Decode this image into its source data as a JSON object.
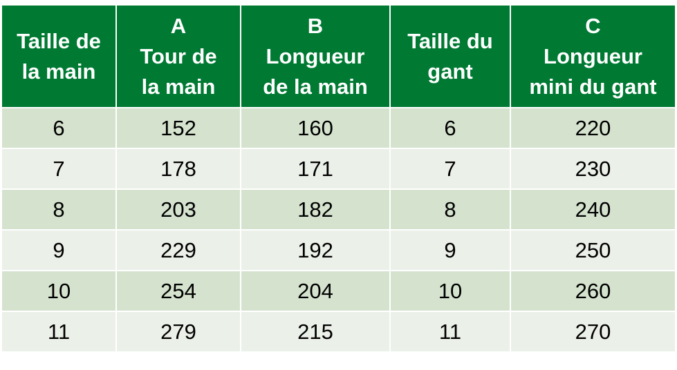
{
  "colors": {
    "header_bg": "#007a33",
    "header_text": "#ffffff",
    "row_odd": "#d5e3ce",
    "row_even": "#ebf0e8"
  },
  "chart_data": {
    "type": "table",
    "columns": [
      {
        "lines": [
          "Taille de",
          "la main"
        ]
      },
      {
        "lines": [
          "A",
          "Tour de",
          "la main"
        ]
      },
      {
        "lines": [
          "B",
          "Longueur",
          "de la main"
        ]
      },
      {
        "lines": [
          "Taille du",
          "gant"
        ]
      },
      {
        "lines": [
          "C",
          "Longueur",
          "mini du gant"
        ]
      }
    ],
    "rows": [
      [
        "6",
        "152",
        "160",
        "6",
        "220"
      ],
      [
        "7",
        "178",
        "171",
        "7",
        "230"
      ],
      [
        "8",
        "203",
        "182",
        "8",
        "240"
      ],
      [
        "9",
        "229",
        "192",
        "9",
        "250"
      ],
      [
        "10",
        "254",
        "204",
        "10",
        "260"
      ],
      [
        "11",
        "279",
        "215",
        "11",
        "270"
      ]
    ]
  }
}
